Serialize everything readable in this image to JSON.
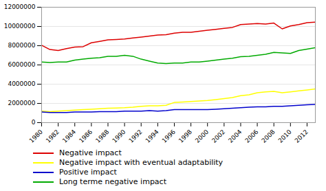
{
  "chart_data": {
    "type": "line",
    "x": [
      1980,
      1981,
      1982,
      1983,
      1984,
      1985,
      1986,
      1987,
      1988,
      1989,
      1990,
      1991,
      1992,
      1993,
      1994,
      1995,
      1996,
      1997,
      1998,
      1999,
      2000,
      2001,
      2002,
      2003,
      2004,
      2005,
      2006,
      2007,
      2008,
      2009,
      2010,
      2011,
      2012,
      2013
    ],
    "series": [
      {
        "name": "Negative impact",
        "color": "#dd0000",
        "values": [
          8050000,
          7600000,
          7500000,
          7700000,
          7850000,
          7900000,
          8300000,
          8450000,
          8600000,
          8650000,
          8700000,
          8800000,
          8900000,
          9000000,
          9100000,
          9150000,
          9300000,
          9400000,
          9400000,
          9500000,
          9600000,
          9700000,
          9800000,
          9900000,
          10200000,
          10250000,
          10300000,
          10250000,
          10350000,
          9750000,
          10050000,
          10200000,
          10400000,
          10450000
        ]
      },
      {
        "name": "Negative impact with eventual adaptability",
        "color": "#ffff00",
        "values": [
          1200000,
          1150000,
          1200000,
          1250000,
          1300000,
          1350000,
          1400000,
          1450000,
          1500000,
          1520000,
          1550000,
          1600000,
          1700000,
          1750000,
          1750000,
          1800000,
          2100000,
          2150000,
          2200000,
          2250000,
          2300000,
          2400000,
          2500000,
          2600000,
          2800000,
          2900000,
          3100000,
          3200000,
          3250000,
          3100000,
          3200000,
          3300000,
          3400000,
          3500000
        ]
      },
      {
        "name": "Positive impact",
        "color": "#0000cc",
        "values": [
          1100000,
          1050000,
          1050000,
          1050000,
          1100000,
          1100000,
          1100000,
          1150000,
          1150000,
          1150000,
          1200000,
          1200000,
          1200000,
          1250000,
          1200000,
          1250000,
          1350000,
          1350000,
          1350000,
          1350000,
          1350000,
          1400000,
          1450000,
          1500000,
          1550000,
          1600000,
          1650000,
          1650000,
          1700000,
          1700000,
          1750000,
          1800000,
          1850000,
          1900000
        ]
      },
      {
        "name": "Long terme negative impact",
        "color": "#00aa00",
        "values": [
          6300000,
          6250000,
          6300000,
          6300000,
          6500000,
          6600000,
          6700000,
          6750000,
          6900000,
          6900000,
          7000000,
          6900000,
          6600000,
          6400000,
          6200000,
          6150000,
          6200000,
          6200000,
          6300000,
          6300000,
          6400000,
          6500000,
          6600000,
          6700000,
          6850000,
          6900000,
          7000000,
          7100000,
          7300000,
          7250000,
          7200000,
          7500000,
          7650000,
          7800000
        ]
      }
    ],
    "xlim": [
      1980,
      2013
    ],
    "xticks": [
      1980,
      1982,
      1984,
      1986,
      1988,
      1990,
      1992,
      1994,
      1996,
      1998,
      2000,
      2002,
      2004,
      2006,
      2008,
      2010,
      2012
    ],
    "ylim": [
      0,
      12000000
    ],
    "yticks": [
      0,
      2000000,
      4000000,
      6000000,
      8000000,
      10000000,
      12000000
    ],
    "grid": "y",
    "legend": "bottom"
  }
}
